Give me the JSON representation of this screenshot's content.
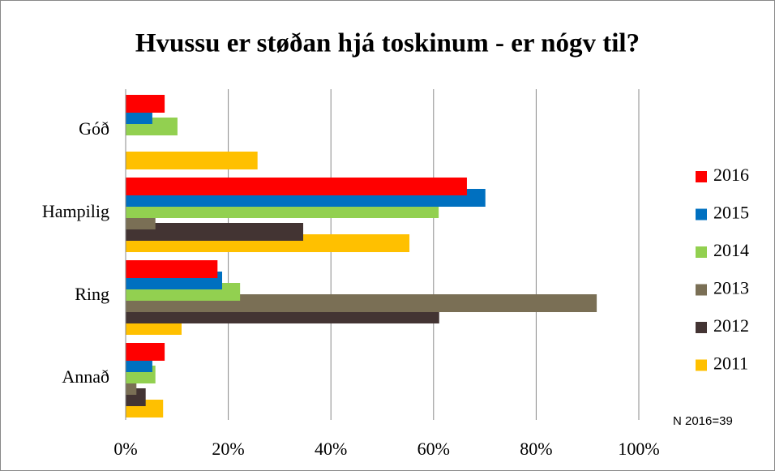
{
  "chart_data": {
    "type": "hbar",
    "title": "Hvussu er støðan hjá toskinum - er nógv til?",
    "categories": [
      "Góð",
      "Hampilig",
      "Ring",
      "Annað"
    ],
    "series": [
      {
        "name": "2016",
        "color": "#ff0000",
        "values": [
          7.6,
          66.5,
          17.9,
          7.6
        ]
      },
      {
        "name": "2015",
        "color": "#0070c0",
        "values": [
          5.2,
          70.1,
          18.8,
          5.2
        ]
      },
      {
        "name": "2014",
        "color": "#92d050",
        "values": [
          10.1,
          61.0,
          22.3,
          5.8
        ]
      },
      {
        "name": "2013",
        "color": "#7a6f55",
        "values": [
          0,
          5.8,
          91.8,
          2.1
        ]
      },
      {
        "name": "2012",
        "color": "#433433",
        "values": [
          0,
          34.6,
          61.1,
          3.9
        ]
      },
      {
        "name": "2011",
        "color": "#ffc000",
        "values": [
          25.7,
          55.3,
          10.9,
          7.3
        ]
      }
    ],
    "xlim": [
      0,
      100
    ],
    "xticks": [
      {
        "value": 0,
        "label": "0%"
      },
      {
        "value": 20,
        "label": "20%"
      },
      {
        "value": 40,
        "label": "40%"
      },
      {
        "value": 60,
        "label": "60%"
      },
      {
        "value": 80,
        "label": "80%"
      },
      {
        "value": 100,
        "label": "100%"
      }
    ],
    "grid": true,
    "legend": "right",
    "annotation": "N 2016=39"
  }
}
